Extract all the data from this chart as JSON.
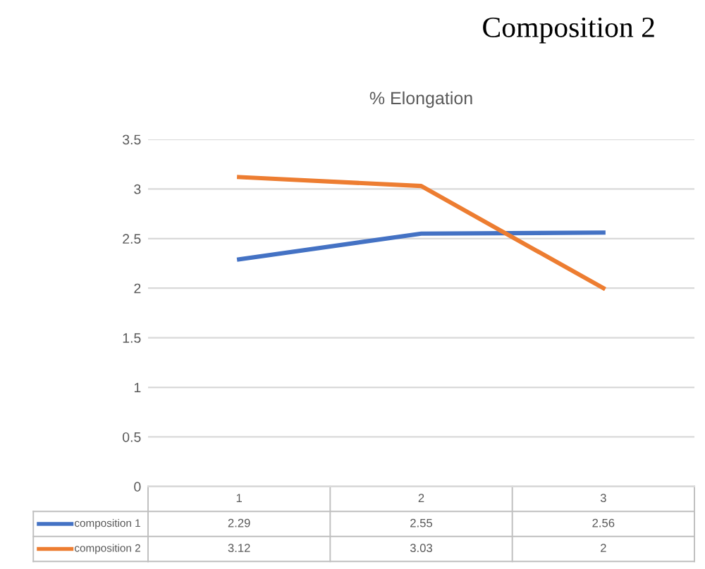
{
  "chart_data": {
    "type": "line",
    "title": "Composition 2",
    "subtitle": "% Elongation",
    "categories": [
      "1",
      "2",
      "3"
    ],
    "series": [
      {
        "name": "composition 1",
        "color": "#4472c4",
        "values": [
          2.29,
          2.55,
          2.56
        ]
      },
      {
        "name": "composition 2",
        "color": "#ed7d31",
        "values": [
          3.12,
          3.03,
          2
        ]
      }
    ],
    "ylim": [
      0,
      3.5
    ],
    "yticks": [
      0,
      0.5,
      1,
      1.5,
      2,
      2.5,
      3,
      3.5
    ],
    "grid": "y",
    "data_labels": true,
    "legend": "bottom",
    "marker": "none",
    "line_style": "solid"
  }
}
